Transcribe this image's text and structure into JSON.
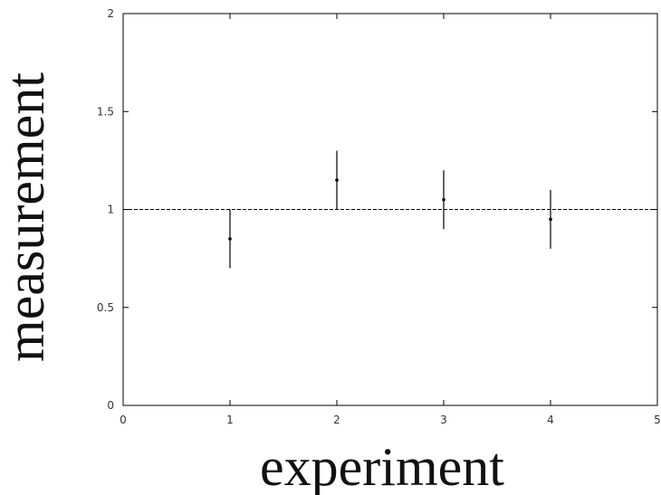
{
  "chart_data": {
    "type": "scatter",
    "title": "",
    "xlabel": "experiment",
    "ylabel": "measurement",
    "xlim": [
      0,
      5
    ],
    "ylim": [
      0,
      2
    ],
    "x_ticks": [
      0,
      1,
      2,
      3,
      4,
      5
    ],
    "y_ticks": [
      0,
      0.5,
      1,
      1.5,
      2
    ],
    "x_tick_labels": [
      "0",
      "1",
      "2",
      "3",
      "4",
      "5"
    ],
    "y_tick_labels": [
      "0",
      "0.5",
      "1",
      "1.5",
      "2"
    ],
    "grid": false,
    "reference_line": {
      "y": 1,
      "style": "dashed"
    },
    "series": [
      {
        "points": [
          {
            "x": 1,
            "y": 0.85,
            "y_low": 0.7,
            "y_high": 1.0
          },
          {
            "x": 2,
            "y": 1.15,
            "y_low": 1.0,
            "y_high": 1.3
          },
          {
            "x": 3,
            "y": 1.05,
            "y_low": 0.9,
            "y_high": 1.2
          },
          {
            "x": 4,
            "y": 0.95,
            "y_low": 0.8,
            "y_high": 1.1
          }
        ]
      }
    ]
  }
}
